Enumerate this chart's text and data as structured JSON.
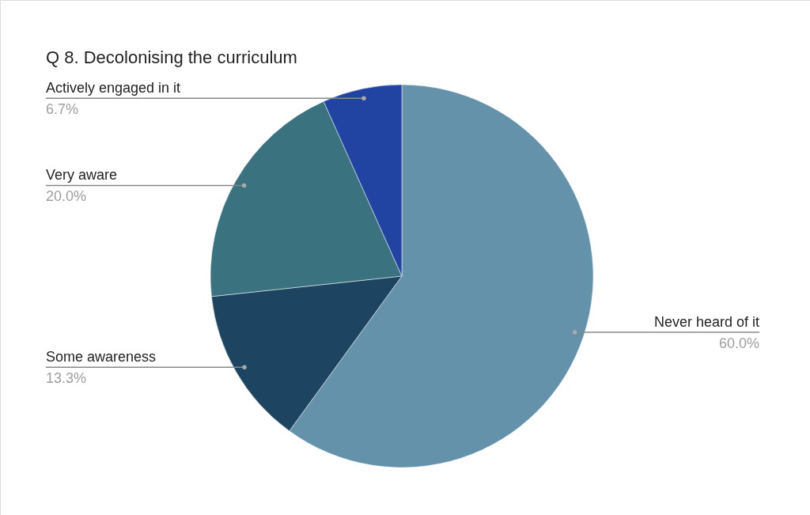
{
  "chart_data": {
    "type": "pie",
    "title": "Q 8. Decolonising the curriculum",
    "categories": [
      "Never heard of it",
      "Some awareness",
      "Very aware",
      "Actively engaged in it"
    ],
    "values": [
      60.0,
      13.3,
      20.0,
      6.7
    ],
    "colors": [
      "#6592ab",
      "#1d4460",
      "#3a7280",
      "#2144a2"
    ],
    "value_labels": [
      "60.0%",
      "13.3%",
      "20.0%",
      "6.7%"
    ]
  }
}
